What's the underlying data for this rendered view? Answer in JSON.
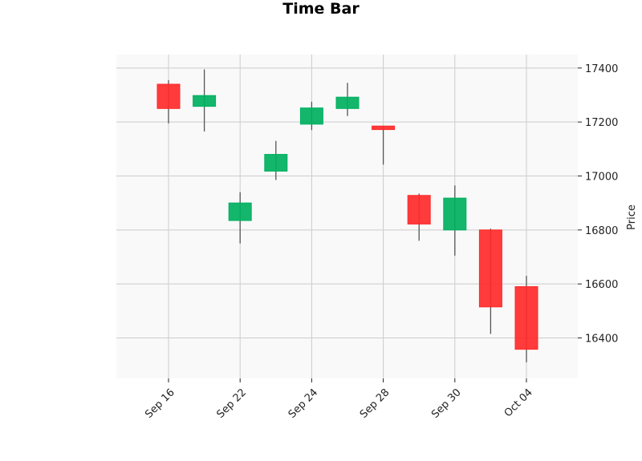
{
  "chart_data": {
    "type": "candlestick",
    "title": "Time Bar",
    "ylabel": "Price",
    "xlabel": "",
    "ylim": [
      16250,
      17450
    ],
    "yticks": [
      16400,
      16600,
      16800,
      17000,
      17200,
      17400
    ],
    "grid": true,
    "x_tick_labels": [
      "Sep 16",
      "Sep 22",
      "Sep 24",
      "Sep 28",
      "Sep 30",
      "Oct 04"
    ],
    "colors": {
      "up": "#00b060",
      "down": "#ff2a2a",
      "wick": "#555555",
      "plot_bg": "#f9f9f9",
      "grid": "#cccccc"
    },
    "candles": [
      {
        "open": 17340,
        "high": 17355,
        "low": 17195,
        "close": 17250
      },
      {
        "open": 17258,
        "high": 17395,
        "low": 17165,
        "close": 17298
      },
      {
        "open": 16835,
        "high": 16940,
        "low": 16750,
        "close": 16900
      },
      {
        "open": 17018,
        "high": 17130,
        "low": 16985,
        "close": 17080
      },
      {
        "open": 17192,
        "high": 17275,
        "low": 17170,
        "close": 17252
      },
      {
        "open": 17250,
        "high": 17345,
        "low": 17222,
        "close": 17292
      },
      {
        "open": 17185,
        "high": 17185,
        "low": 17042,
        "close": 17172
      },
      {
        "open": 16928,
        "high": 16935,
        "low": 16760,
        "close": 16822
      },
      {
        "open": 16800,
        "high": 16965,
        "low": 16705,
        "close": 16918
      },
      {
        "open": 16800,
        "high": 16805,
        "low": 16415,
        "close": 16515
      },
      {
        "open": 16590,
        "high": 16630,
        "low": 16310,
        "close": 16358
      }
    ]
  }
}
